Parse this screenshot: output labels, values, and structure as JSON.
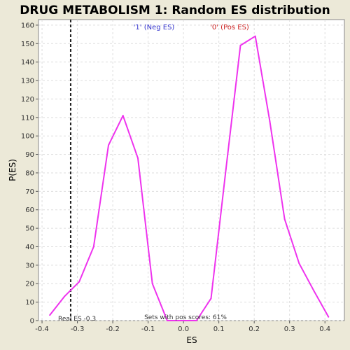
{
  "chart_data": {
    "type": "line",
    "title": "DRUG METABOLISM 1: Random ES distribution",
    "xlabel": "ES",
    "ylabel": "P(ES)",
    "xlim": [
      -0.41,
      0.455
    ],
    "ylim": [
      0,
      163
    ],
    "x_ticks": [
      -0.4,
      -0.3,
      -0.2,
      -0.1,
      0.0,
      0.1,
      0.2,
      0.3,
      0.4
    ],
    "x_tick_labels": [
      "-0.4",
      "-0.3",
      "-0.2",
      "-0.1",
      "0.0",
      "0.1",
      "0.2",
      "0.3",
      "0.4"
    ],
    "y_ticks": [
      0,
      10,
      20,
      30,
      40,
      50,
      60,
      70,
      80,
      90,
      100,
      110,
      120,
      130,
      140,
      150,
      160
    ],
    "grid": true,
    "series": [
      {
        "color": "#EE33EE",
        "x": [
          -0.378,
          -0.337,
          -0.295,
          -0.254,
          -0.212,
          -0.171,
          -0.129,
          -0.088,
          -0.046,
          -0.005,
          0.037,
          0.078,
          0.12,
          0.161,
          0.203,
          0.244,
          0.286,
          0.327,
          0.369,
          0.41
        ],
        "y": [
          3,
          13,
          21,
          40,
          95,
          111,
          88,
          20,
          0,
          0,
          0,
          12,
          82,
          149,
          154,
          108,
          55,
          31,
          16,
          2
        ]
      }
    ],
    "annotations": {
      "neg_label": "'1' (Neg ES)",
      "neg_color": "#3333CC",
      "pos_label": "'0' (Pos ES)",
      "pos_color": "#CC2222",
      "real_es_label": "Real ES -0.3",
      "real_es_value": -0.319,
      "pos_scores_label": "Sets with pos scores: 61%"
    }
  }
}
